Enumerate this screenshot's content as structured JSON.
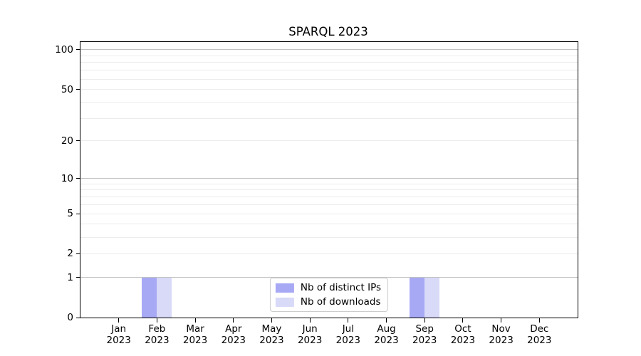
{
  "title": "SPARQL 2023",
  "chart_data": {
    "type": "bar",
    "title": "SPARQL 2023",
    "yscale": "log1p",
    "ylim": [
      0,
      114.6
    ],
    "grid": "both",
    "legend_position": "lower center",
    "x_ticks": [
      {
        "line1": "Jan",
        "line2": "2023"
      },
      {
        "line1": "Feb",
        "line2": "2023"
      },
      {
        "line1": "Mar",
        "line2": "2023"
      },
      {
        "line1": "Apr",
        "line2": "2023"
      },
      {
        "line1": "May",
        "line2": "2023"
      },
      {
        "line1": "Jun",
        "line2": "2023"
      },
      {
        "line1": "Jul",
        "line2": "2023"
      },
      {
        "line1": "Aug",
        "line2": "2023"
      },
      {
        "line1": "Sep",
        "line2": "2023"
      },
      {
        "line1": "Oct",
        "line2": "2023"
      },
      {
        "line1": "Nov",
        "line2": "2023"
      },
      {
        "line1": "Dec",
        "line2": "2023"
      }
    ],
    "y_ticks": [
      {
        "label": "0",
        "value": 0
      },
      {
        "label": "1",
        "value": 1
      },
      {
        "label": "2",
        "value": 2
      },
      {
        "label": "5",
        "value": 5
      },
      {
        "label": "10",
        "value": 10
      },
      {
        "label": "20",
        "value": 20
      },
      {
        "label": "50",
        "value": 50
      },
      {
        "label": "100",
        "value": 100
      }
    ],
    "major_gridlines": [
      1,
      10,
      100
    ],
    "minor_gridlines": [
      2,
      3,
      4,
      5,
      6,
      7,
      8,
      9,
      20,
      30,
      40,
      50,
      60,
      70,
      80,
      90
    ],
    "series": [
      {
        "name": "Nb of distinct IPs",
        "color": "#a7a9f4",
        "values": [
          0,
          1,
          0,
          0,
          0,
          0,
          0,
          0,
          1,
          0,
          0,
          0
        ]
      },
      {
        "name": "Nb of downloads",
        "color": "#d8daf8",
        "values": [
          0,
          1,
          0,
          0,
          0,
          0,
          0,
          0,
          1,
          0,
          0,
          0
        ]
      }
    ],
    "colors": {
      "grid_major": "#c2c2c2",
      "grid_minor": "#ececec",
      "axis": "#000000",
      "legend_border": "#cccccc"
    }
  }
}
